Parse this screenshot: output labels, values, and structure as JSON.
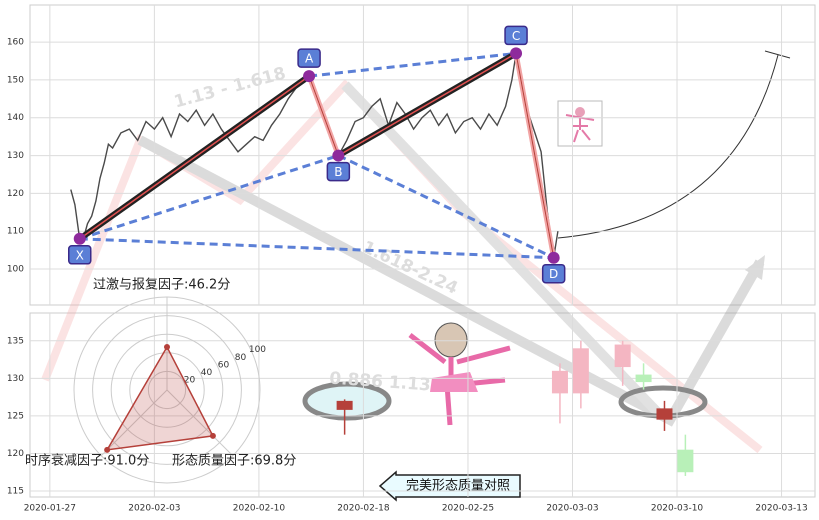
{
  "chart_data": [
    {
      "type": "line",
      "color": "#4a4a4a",
      "x": [
        1.0,
        1.2,
        1.4,
        1.6,
        1.8,
        2.0,
        2.2,
        2.4,
        2.6,
        2.8,
        3.0,
        3.4,
        3.8,
        4.2,
        4.6,
        5.0,
        5.4,
        5.8,
        6.2,
        6.6,
        7.0,
        7.4,
        7.8,
        8.2,
        8.6,
        9.0,
        9.4,
        9.8,
        10.2,
        10.6,
        11.0,
        11.4,
        11.8,
        12.2,
        12.4,
        12.8,
        13.2,
        13.6,
        13.8,
        14.2,
        14.6,
        15.0,
        15.4,
        15.8,
        16.2,
        16.6,
        17.0,
        17.4,
        17.8,
        18.2,
        18.6,
        19.0,
        19.4,
        19.8,
        20.2,
        20.6,
        21.0,
        21.4,
        21.8,
        22.1,
        22.3,
        22.6,
        22.9,
        23.2,
        23.5,
        23.8,
        24.1,
        24.3
      ],
      "values": [
        121,
        117,
        109,
        108,
        112,
        114,
        118,
        124,
        128,
        133,
        132,
        136,
        137,
        134,
        139,
        137,
        140,
        135,
        141,
        139,
        142,
        138,
        141,
        137,
        134,
        131,
        133,
        135,
        134,
        138,
        141,
        145,
        148,
        150,
        151,
        146,
        140,
        133,
        130,
        134,
        139,
        140,
        143,
        145,
        138,
        144,
        141,
        137,
        140,
        142,
        138,
        141,
        136,
        139,
        140,
        137,
        141,
        138,
        143,
        150,
        157,
        148,
        141,
        136,
        131,
        115,
        103,
        110
      ],
      "xlim": [
        -0.95,
        36.6
      ],
      "ylim": [
        90.5,
        169.8
      ],
      "yticks": [
        100,
        110,
        120,
        130,
        140,
        150,
        160
      ],
      "grid": true,
      "pattern": {
        "labels": [
          "X",
          "A",
          "B",
          "C",
          "D"
        ],
        "x": [
          1.43,
          12.4,
          13.8,
          22.3,
          24.1
        ],
        "values": [
          108,
          151,
          130,
          157,
          103
        ]
      },
      "annotations": [
        "1.13 - 1.618",
        "1.618-2.24",
        "0.886 1.13"
      ]
    },
    {
      "type": "candlestick",
      "x": [
        14.1,
        24.4,
        25.4,
        27.4,
        28.4,
        29.4,
        30.4
      ],
      "open": [
        125.8,
        128,
        128,
        131.5,
        130.5,
        126,
        120.5
      ],
      "high": [
        127.2,
        132,
        135,
        135,
        132,
        127,
        122.5
      ],
      "low": [
        122.5,
        124,
        126,
        129,
        128.5,
        123,
        117
      ],
      "close": [
        127,
        131,
        134,
        134.5,
        129.5,
        124.5,
        117.5
      ],
      "colors": [
        "#b5403a",
        "#f4b6c2",
        "#f4b6c2",
        "#f4b6c2",
        "#b8f0b8",
        "#b5403a",
        "#b8f0b8"
      ],
      "xlim": [
        -0.95,
        36.6
      ],
      "ylim": [
        114.2,
        138.7
      ],
      "yticks": [
        115,
        120,
        125,
        130,
        135
      ],
      "xticks": [
        {
          "value": 0,
          "label": "2020-01-27"
        },
        {
          "value": 5,
          "label": "2020-02-03"
        },
        {
          "value": 10,
          "label": "2020-02-10"
        },
        {
          "value": 15,
          "label": "2020-02-18"
        },
        {
          "value": 20,
          "label": "2020-02-25"
        },
        {
          "value": 25,
          "label": "2020-03-03"
        },
        {
          "value": 30,
          "label": "2020-03-10"
        },
        {
          "value": 35,
          "label": "2020-03-13"
        }
      ],
      "grid": true
    },
    {
      "type": "radar",
      "color": "#b5403a",
      "categories": [
        "过激与报复因子:46.2分",
        "时序衰减因子:91.0分",
        "形态质量因子:69.8分"
      ],
      "values": [
        46.2,
        91.0,
        69.8
      ],
      "rlim": [
        0,
        100
      ],
      "rticks": [
        20,
        40,
        60,
        80,
        100
      ]
    }
  ],
  "button": {
    "label": "完美形态质量对照"
  }
}
